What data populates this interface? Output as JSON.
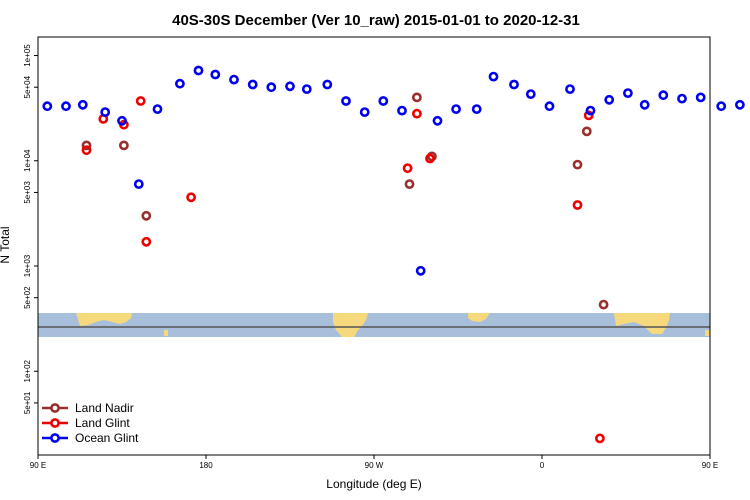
{
  "chart_data": {
    "type": "scatter",
    "title": "40S-30S December (Ver 10_raw)   2015-01-01 to 2020-12-31",
    "xlabel": "Longitude (deg E)",
    "ylabel": "N Total",
    "x_unrolled_range": [
      90,
      450
    ],
    "x_ticks": [
      {
        "value": 90,
        "label": "90 E"
      },
      {
        "value": 180,
        "label": "180"
      },
      {
        "value": 270,
        "label": "90 W"
      },
      {
        "value": 360,
        "label": "0"
      },
      {
        "value": 450,
        "label": "90 E"
      },
      {
        "value": 540,
        "label": "180"
      }
    ],
    "y_scale": "log",
    "ylim": [
      16,
      150000
    ],
    "y_ticks": [
      {
        "value": 50,
        "label": "5e+01"
      },
      {
        "value": 100,
        "label": "1e+02"
      },
      {
        "value": 500,
        "label": "5e+02"
      },
      {
        "value": 1000,
        "label": "1e+03"
      },
      {
        "value": 5000,
        "label": "5e+03"
      },
      {
        "value": 10000,
        "label": "1e+04"
      },
      {
        "value": 50000,
        "label": "5e+04"
      },
      {
        "value": 100000,
        "label": "1e+05"
      }
    ],
    "grid": false,
    "legend": {
      "position": "bottom-left"
    },
    "map_strip": {
      "colors": {
        "ocean": "#a8bfdc",
        "land": "#f7d97d",
        "line": "#555555"
      }
    },
    "series": [
      {
        "name": "Land Nadir",
        "color": "#9b2f2f",
        "points": [
          {
            "x": 116,
            "y": 14000
          },
          {
            "x": 136,
            "y": 14000
          },
          {
            "x": 148,
            "y": 3000
          },
          {
            "x": 289,
            "y": 6000
          },
          {
            "x": 293,
            "y": 40000
          },
          {
            "x": 301,
            "y": 11000
          },
          {
            "x": 379,
            "y": 9200
          },
          {
            "x": 384,
            "y": 19000
          },
          {
            "x": 393,
            "y": 430
          },
          {
            "x": 478,
            "y": 14000
          },
          {
            "x": 497,
            "y": 14000
          },
          {
            "x": 509,
            "y": 3000
          }
        ]
      },
      {
        "name": "Land Glint",
        "color": "#ee0000",
        "points": [
          {
            "x": 116,
            "y": 12600
          },
          {
            "x": 125,
            "y": 25000
          },
          {
            "x": 136,
            "y": 22000
          },
          {
            "x": 145,
            "y": 37000
          },
          {
            "x": 148,
            "y": 1700
          },
          {
            "x": 172,
            "y": 4500
          },
          {
            "x": 288,
            "y": 8500
          },
          {
            "x": 293,
            "y": 28000
          },
          {
            "x": 300,
            "y": 10500
          },
          {
            "x": 379,
            "y": 3800
          },
          {
            "x": 385,
            "y": 27000
          },
          {
            "x": 391,
            "y": 23
          },
          {
            "x": 478,
            "y": 12600
          },
          {
            "x": 485,
            "y": 25000
          },
          {
            "x": 496,
            "y": 22000
          },
          {
            "x": 505,
            "y": 37000
          },
          {
            "x": 508,
            "y": 1700
          },
          {
            "x": 532,
            "y": 4500
          }
        ]
      },
      {
        "name": "Ocean Glint",
        "color": "#0000ee",
        "points": [
          {
            "x": 95,
            "y": 33000
          },
          {
            "x": 105,
            "y": 33000
          },
          {
            "x": 114,
            "y": 34000
          },
          {
            "x": 126,
            "y": 29000
          },
          {
            "x": 135,
            "y": 24000
          },
          {
            "x": 144,
            "y": 6000
          },
          {
            "x": 154,
            "y": 31000
          },
          {
            "x": 166,
            "y": 54000
          },
          {
            "x": 176,
            "y": 72000
          },
          {
            "x": 185,
            "y": 66000
          },
          {
            "x": 195,
            "y": 59000
          },
          {
            "x": 205,
            "y": 53000
          },
          {
            "x": 215,
            "y": 50000
          },
          {
            "x": 225,
            "y": 51000
          },
          {
            "x": 234,
            "y": 48000
          },
          {
            "x": 245,
            "y": 53000
          },
          {
            "x": 255,
            "y": 37000
          },
          {
            "x": 265,
            "y": 29000
          },
          {
            "x": 275,
            "y": 37000
          },
          {
            "x": 285,
            "y": 30000
          },
          {
            "x": 295,
            "y": 900
          },
          {
            "x": 304,
            "y": 24000
          },
          {
            "x": 314,
            "y": 31000
          },
          {
            "x": 325,
            "y": 31000
          },
          {
            "x": 334,
            "y": 63000
          },
          {
            "x": 345,
            "y": 53000
          },
          {
            "x": 354,
            "y": 43000
          },
          {
            "x": 364,
            "y": 33000
          },
          {
            "x": 375,
            "y": 48000
          },
          {
            "x": 386,
            "y": 30000
          },
          {
            "x": 396,
            "y": 38000
          },
          {
            "x": 406,
            "y": 44000
          },
          {
            "x": 415,
            "y": 34000
          },
          {
            "x": 425,
            "y": 42000
          },
          {
            "x": 435,
            "y": 39000
          },
          {
            "x": 445,
            "y": 40000
          },
          {
            "x": 456,
            "y": 33000
          },
          {
            "x": 466,
            "y": 34000
          },
          {
            "x": 475,
            "y": 34000
          },
          {
            "x": 486,
            "y": 29000
          },
          {
            "x": 496,
            "y": 24000
          },
          {
            "x": 506,
            "y": 6000
          },
          {
            "x": 515,
            "y": 31000
          },
          {
            "x": 527,
            "y": 54000
          },
          {
            "x": 536,
            "y": 72000
          }
        ]
      }
    ]
  }
}
